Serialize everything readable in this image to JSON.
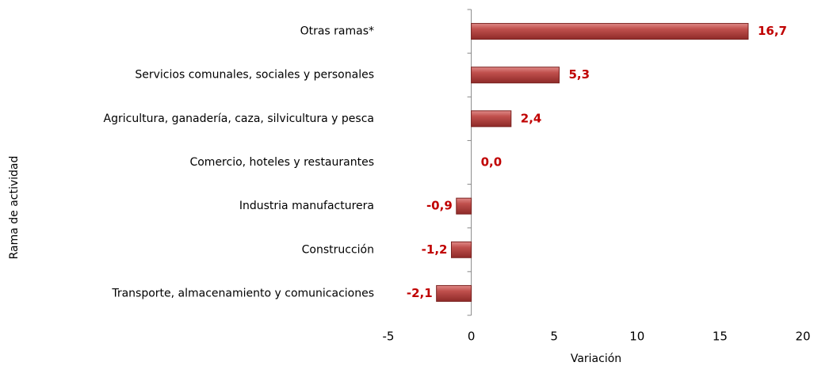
{
  "chart_data": {
    "type": "bar",
    "orientation": "horizontal",
    "xlabel": "Variación",
    "ylabel": "Rama de actividad",
    "categories": [
      "Otras ramas*",
      "Servicios comunales, sociales y personales",
      "Agricultura, ganadería, caza, silvicultura y pesca",
      "Comercio, hoteles y restaurantes",
      "Industria manufacturera",
      "Construcción",
      "Transporte, almacenamiento y comunicaciones"
    ],
    "values": [
      16.7,
      5.3,
      2.4,
      0.0,
      -0.9,
      -1.2,
      -2.1
    ],
    "value_labels": [
      "16,7",
      "5,3",
      "2,4",
      "0,0",
      "-0,9",
      "-1,2",
      "-2,1"
    ],
    "color": "#c0504d",
    "xlim": [
      -5,
      20
    ],
    "xticks": [
      -5,
      0,
      5,
      10,
      15,
      20
    ],
    "grid": false
  }
}
